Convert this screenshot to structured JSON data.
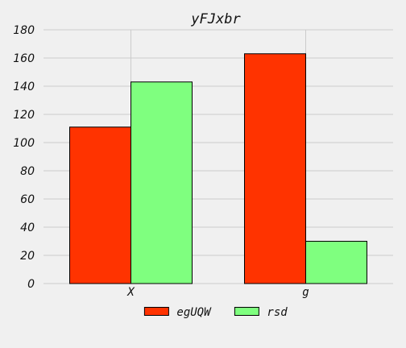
{
  "chart_data": {
    "type": "bar",
    "title": "yFJxbr",
    "xlabel": "",
    "ylabel": "",
    "categories": [
      "X",
      "g"
    ],
    "series": [
      {
        "name": "egUQW",
        "values": [
          111,
          163
        ],
        "color": "#ff3300"
      },
      {
        "name": "rsd",
        "values": [
          143,
          30
        ],
        "color": "#7fff7f"
      }
    ],
    "ylim": [
      0,
      180
    ],
    "yticks": [
      0,
      20,
      40,
      60,
      80,
      100,
      120,
      140,
      160,
      180
    ],
    "grid": true,
    "legend_position": "bottom-center"
  }
}
